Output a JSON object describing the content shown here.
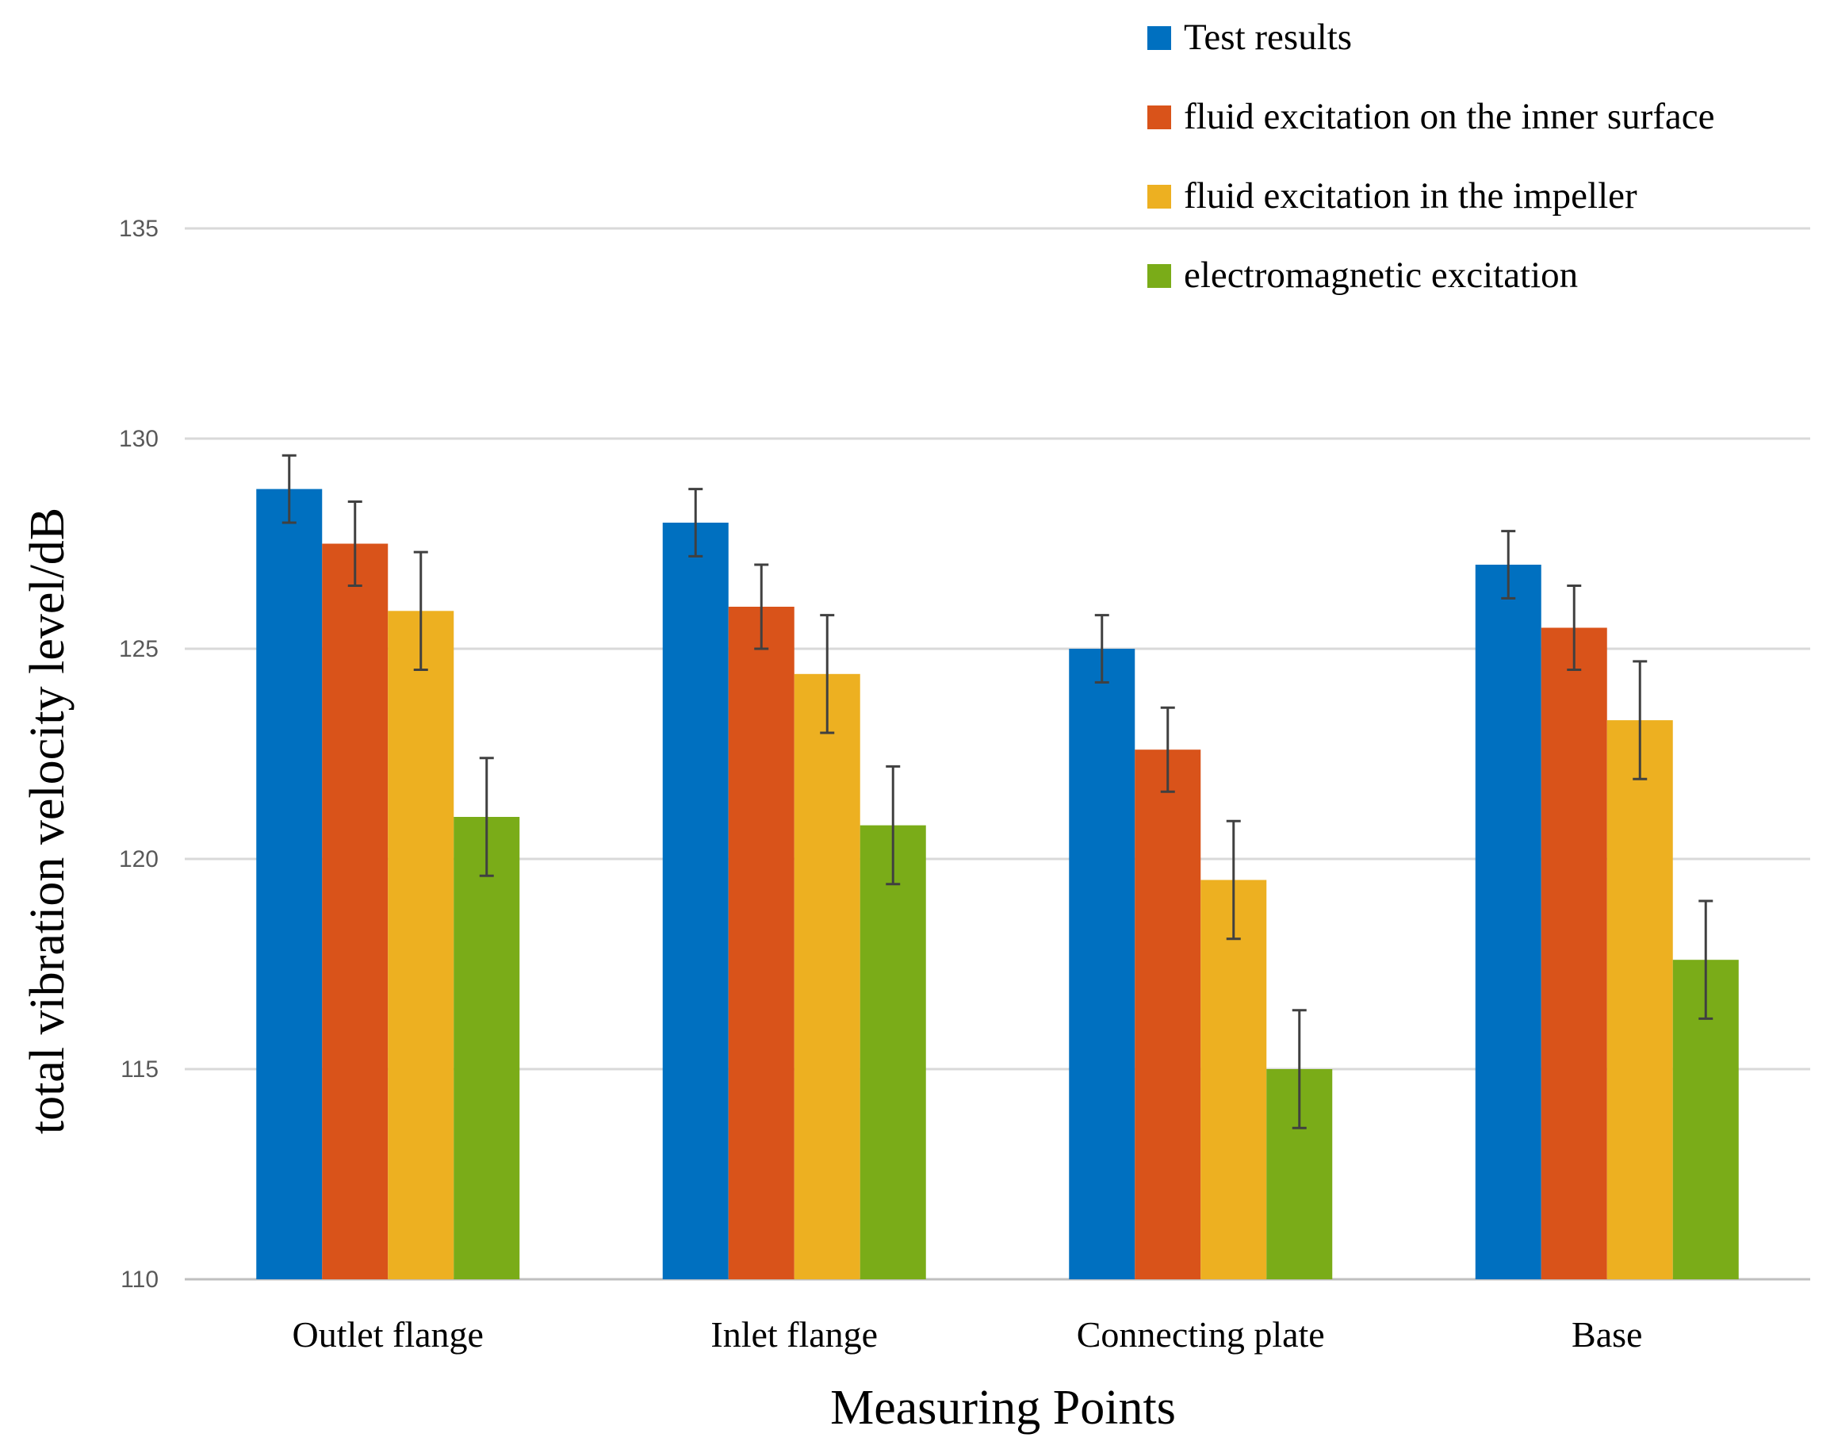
{
  "chart_data": {
    "type": "bar",
    "title": "",
    "xlabel": "Measuring Points",
    "ylabel": "total vibration velocity level/dB",
    "ylim": [
      110,
      135
    ],
    "yticks": [
      110,
      115,
      120,
      125,
      130,
      135
    ],
    "grid": true,
    "legend_position": "top-right",
    "categories": [
      "Outlet flange",
      "Inlet flange",
      "Connecting plate",
      "Base"
    ],
    "series": [
      {
        "name": "Test results",
        "color": "#0070C0",
        "values": [
          128.8,
          128.0,
          125.0,
          127.0
        ],
        "error": [
          0.8,
          0.8,
          0.8,
          0.8
        ]
      },
      {
        "name": "fluid excitation on the inner surface",
        "color": "#D9531A",
        "values": [
          127.5,
          126.0,
          122.6,
          125.5
        ],
        "error": [
          1.0,
          1.0,
          1.0,
          1.0
        ]
      },
      {
        "name": "fluid excitation in the impeller",
        "color": "#EDB021",
        "values": [
          125.9,
          124.4,
          119.5,
          123.3
        ],
        "error": [
          1.4,
          1.4,
          1.4,
          1.4
        ]
      },
      {
        "name": "electromagnetic excitation",
        "color": "#7AAC18",
        "values": [
          121.0,
          120.8,
          115.0,
          117.6
        ],
        "error": [
          1.4,
          1.4,
          1.4,
          1.4
        ]
      }
    ]
  }
}
